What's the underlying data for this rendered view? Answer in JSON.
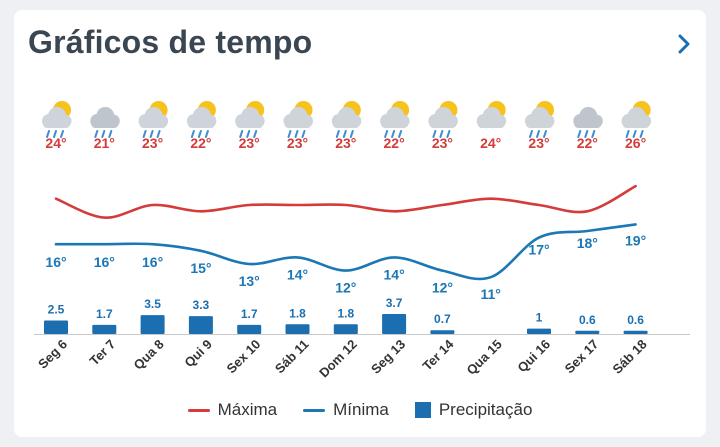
{
  "header": {
    "title": "Gráficos de tempo",
    "next_icon": "chevron-right-icon"
  },
  "colors": {
    "max": "#d43b3b",
    "min": "#1b77b5",
    "precip": "#1b6fb0",
    "axis": "#999999"
  },
  "legend": {
    "max_label": "Máxima",
    "min_label": "Mínima",
    "precip_label": "Precipitação"
  },
  "chart_data": {
    "type": "line",
    "categories": [
      "Seg 6",
      "Ter 7",
      "Qua 8",
      "Qui 9",
      "Sex 10",
      "Sáb 11",
      "Dom 12",
      "Seg 13",
      "Ter 14",
      "Qua 15",
      "Qui 16",
      "Sex 17",
      "Sáb 18"
    ],
    "series": [
      {
        "name": "Máxima",
        "values": [
          24,
          21,
          23,
          22,
          23,
          23,
          23,
          22,
          23,
          24,
          23,
          22,
          26
        ],
        "labels": [
          "24°",
          "21°",
          "23°",
          "22°",
          "23°",
          "23°",
          "23°",
          "22°",
          "23°",
          "24°",
          "23°",
          "22°",
          "26°"
        ]
      },
      {
        "name": "Mínima",
        "values": [
          16,
          16,
          16,
          15,
          13,
          14,
          12,
          14,
          12,
          11,
          17,
          18,
          19
        ],
        "labels": [
          "16°",
          "16°",
          "16°",
          "15°",
          "13°",
          "14°",
          "12°",
          "14°",
          "12°",
          "11°",
          "17°",
          "18°",
          "19°"
        ]
      },
      {
        "name": "Precipitação",
        "type": "bar",
        "values": [
          2.5,
          1.7,
          3.5,
          3.3,
          1.7,
          1.8,
          1.8,
          3.7,
          0.7,
          null,
          1,
          0.6,
          0.6
        ],
        "labels": [
          "2.5",
          "1.7",
          "3.5",
          "3.3",
          "1.7",
          "1.8",
          "1.8",
          "3.7",
          "0.7",
          "",
          "1",
          "0.6",
          "0.6"
        ]
      }
    ],
    "icons": [
      "sun-cloud-rain-icon",
      "cloud-rain-icon",
      "sun-cloud-rain-icon",
      "sun-cloud-rain-icon",
      "sun-cloud-rain-icon",
      "sun-cloud-rain-icon",
      "sun-cloud-rain-icon",
      "sun-cloud-rain-icon",
      "sun-cloud-rain-icon",
      "sun-cloud-icon",
      "sun-cloud-rain-icon",
      "cloud-rain-icon",
      "sun-cloud-rain-icon"
    ],
    "grid": false,
    "legend_position": "bottom"
  }
}
